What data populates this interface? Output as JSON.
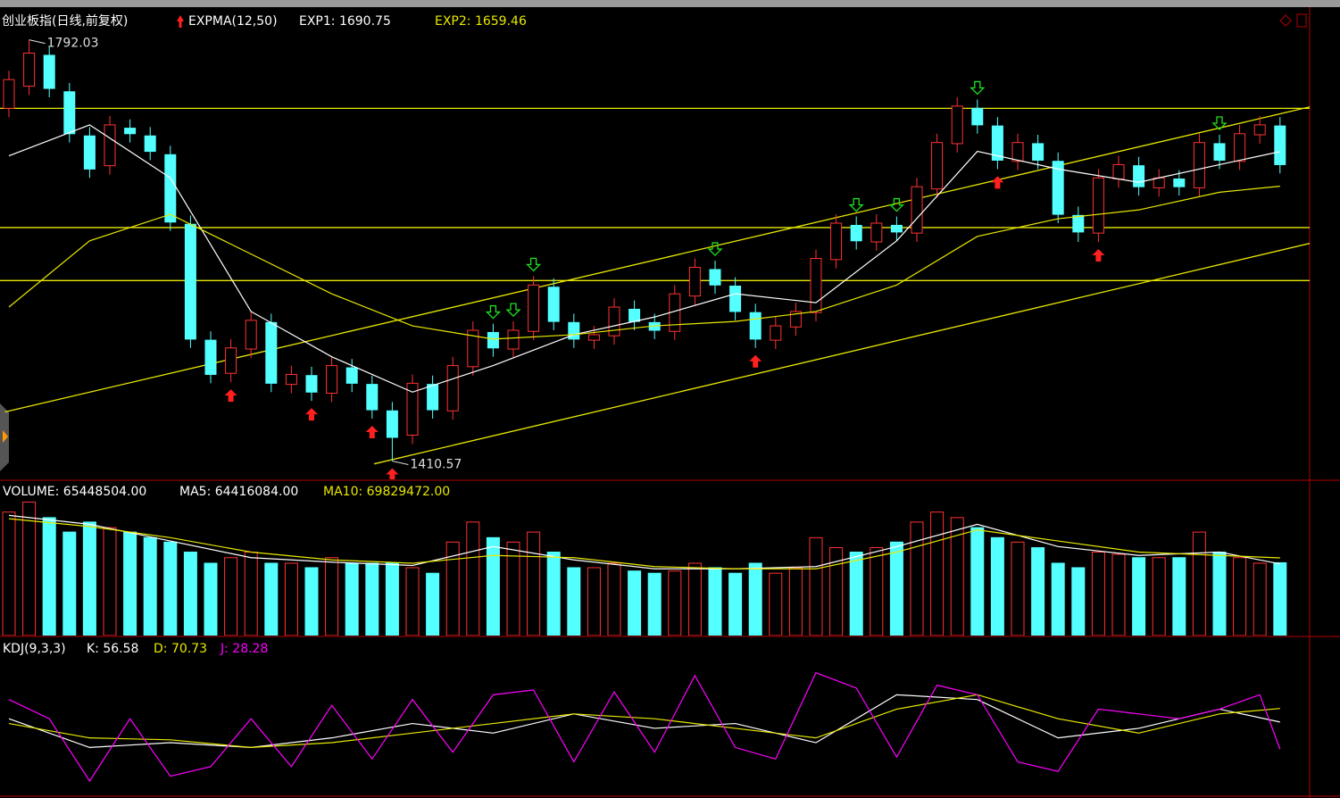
{
  "chart_data": [
    {
      "type": "candlestick",
      "title": "创业板指(日线,前复权)",
      "indicator": "EXPMA(12,50)",
      "categories": [
        null,
        null,
        null,
        null,
        null,
        null,
        null,
        null,
        null,
        null,
        null,
        null,
        null,
        null,
        null,
        null,
        null,
        null,
        null,
        null,
        null,
        null,
        null,
        null,
        null,
        null,
        null,
        null,
        null,
        null,
        null,
        null,
        null,
        null,
        null,
        null,
        null,
        null,
        null,
        null,
        null,
        null,
        null,
        null,
        null,
        null,
        null,
        null,
        null,
        null,
        null,
        null,
        null,
        null,
        null,
        null,
        null,
        null,
        null,
        null,
        null,
        null,
        null,
        null
      ],
      "open": [
        1730,
        1750,
        1778,
        1745,
        1705,
        1678,
        1712,
        1705,
        1688,
        1625,
        1520,
        1490,
        1512,
        1536,
        1480,
        1488,
        1472,
        1495,
        1480,
        1456,
        1434,
        1480,
        1456,
        1496,
        1527,
        1512,
        1528,
        1568,
        1536,
        1520,
        1524,
        1548,
        1536,
        1528,
        1560,
        1584,
        1569,
        1545,
        1520,
        1532,
        1545,
        1593,
        1624,
        1609,
        1624,
        1617,
        1657,
        1698,
        1730,
        1714,
        1682,
        1698,
        1682,
        1633,
        1617,
        1666,
        1678,
        1658,
        1666,
        1658,
        1698,
        1682,
        1706,
        1714
      ],
      "high": [
        1764,
        1792.03,
        1786,
        1753,
        1713,
        1723,
        1720,
        1713,
        1696,
        1633,
        1528,
        1521,
        1546,
        1544,
        1497,
        1496,
        1505,
        1503,
        1488,
        1464,
        1489,
        1488,
        1505,
        1537,
        1535,
        1537,
        1578,
        1576,
        1544,
        1533,
        1558,
        1556,
        1544,
        1570,
        1594,
        1592,
        1577,
        1553,
        1541,
        1554,
        1602,
        1634,
        1632,
        1634,
        1632,
        1667,
        1707,
        1740,
        1738,
        1722,
        1707,
        1706,
        1690,
        1641,
        1675,
        1687,
        1686,
        1675,
        1674,
        1707,
        1706,
        1715,
        1723,
        1722
      ],
      "low": [
        1722,
        1742,
        1740,
        1699,
        1667,
        1670,
        1699,
        1683,
        1619,
        1513,
        1481,
        1482,
        1504,
        1473,
        1472,
        1465,
        1464,
        1473,
        1449,
        1410.57,
        1426,
        1449,
        1448,
        1488,
        1505,
        1504,
        1520,
        1529,
        1513,
        1512,
        1516,
        1529,
        1521,
        1520,
        1552,
        1562,
        1538,
        1513,
        1512,
        1524,
        1537,
        1585,
        1602,
        1601,
        1610,
        1609,
        1649,
        1690,
        1707,
        1675,
        1674,
        1675,
        1626,
        1609,
        1609,
        1658,
        1651,
        1650,
        1651,
        1650,
        1675,
        1674,
        1698,
        1671
      ],
      "close": [
        1756,
        1780,
        1748,
        1707,
        1675,
        1715,
        1707,
        1691,
        1627,
        1521,
        1489,
        1513,
        1538,
        1481,
        1489,
        1473,
        1497,
        1481,
        1457,
        1432,
        1481,
        1457,
        1497,
        1529,
        1513,
        1529,
        1570,
        1537,
        1521,
        1525,
        1550,
        1537,
        1529,
        1562,
        1586,
        1570,
        1546,
        1521,
        1533,
        1546,
        1594,
        1626,
        1610,
        1626,
        1618,
        1659,
        1699,
        1732,
        1715,
        1683,
        1699,
        1683,
        1634,
        1618,
        1667,
        1679,
        1659,
        1667,
        1659,
        1699,
        1683,
        1707,
        1715,
        1679
      ],
      "up_color": "#ff3232",
      "down_color": "#54ffff",
      "ylim": [
        1394,
        1820
      ],
      "series": [
        {
          "name": "EXP1: 1690.75",
          "color": "#ffffff",
          "x": [
            0,
            4,
            8,
            12,
            16,
            20,
            24,
            28,
            32,
            36,
            40,
            44,
            48,
            52,
            56,
            60,
            63
          ],
          "values": [
            1687,
            1715,
            1667,
            1546,
            1505,
            1473,
            1497,
            1525,
            1541,
            1562,
            1554,
            1610,
            1691,
            1675,
            1663,
            1679,
            1690.75
          ]
        },
        {
          "name": "EXP2: 1659.46",
          "color": "#e8e800",
          "x": [
            0,
            4,
            8,
            12,
            16,
            20,
            24,
            28,
            32,
            36,
            40,
            44,
            48,
            52,
            56,
            60,
            63
          ],
          "values": [
            1550,
            1610,
            1634,
            1598,
            1562,
            1533,
            1521,
            1525,
            1533,
            1537,
            1546,
            1570,
            1614,
            1630,
            1638,
            1654,
            1659.46
          ]
        }
      ],
      "hlines": [
        1730,
        1622,
        1574
      ],
      "trendlines": [
        {
          "x": [
            -0.2,
            64.5
          ],
          "values": [
            1455,
            1731.4
          ]
        },
        {
          "x": [
            18.1,
            64.5
          ],
          "values": [
            1408,
            1607.8
          ]
        }
      ],
      "line_color": "#e8e800",
      "buy_signals": [
        11,
        15,
        18,
        19,
        37,
        49,
        54
      ],
      "sell_signals": [
        24,
        25,
        26,
        35,
        42,
        44,
        48,
        60
      ]
    },
    {
      "type": "bar",
      "title": "VOLUME: 65448504.00",
      "values": [
        111000000,
        120000000,
        106000000,
        93000000,
        102000000,
        97000000,
        93000000,
        88000000,
        84000000,
        75000000,
        65000000,
        70000000,
        75000000,
        65000000,
        65000000,
        61000000,
        70000000,
        65000000,
        65000000,
        65000000,
        61000000,
        56000000,
        84000000,
        102000000,
        88000000,
        84000000,
        93000000,
        75000000,
        61000000,
        61000000,
        65000000,
        58000000,
        56000000,
        58000000,
        65000000,
        61000000,
        56000000,
        65000000,
        56000000,
        61000000,
        88000000,
        79000000,
        75000000,
        79000000,
        84000000,
        102000000,
        111000000,
        106000000,
        97000000,
        88000000,
        84000000,
        79000000,
        65000000,
        61000000,
        75000000,
        73000000,
        70000000,
        70000000,
        70000000,
        93000000,
        75000000,
        70000000,
        65000000,
        65448504
      ],
      "ylim": [
        0,
        138000000
      ],
      "series": [
        {
          "name": "MA5: 64416084.00",
          "color": "#ffffff",
          "x": [
            0,
            4,
            8,
            12,
            16,
            20,
            24,
            28,
            32,
            36,
            40,
            44,
            48,
            52,
            56,
            60,
            63
          ],
          "values": [
            108000000,
            100000000,
            85000000,
            70000000,
            66000000,
            63000000,
            80000000,
            68000000,
            60000000,
            60000000,
            62000000,
            80000000,
            100000000,
            80000000,
            72000000,
            75000000,
            64416084
          ]
        },
        {
          "name": "MA10: 69829472.00",
          "color": "#e8e800",
          "x": [
            0,
            4,
            8,
            12,
            16,
            20,
            24,
            28,
            32,
            36,
            40,
            44,
            48,
            52,
            56,
            60,
            63
          ],
          "values": [
            105000000,
            98000000,
            88000000,
            75000000,
            68000000,
            65000000,
            72000000,
            70000000,
            62000000,
            60000000,
            60000000,
            75000000,
            95000000,
            85000000,
            75000000,
            72000000,
            69829472
          ]
        }
      ]
    },
    {
      "type": "line",
      "title": "KDJ(9,3,3)",
      "ylim": [
        -19,
        144
      ],
      "series": [
        {
          "name": "K: 56.58",
          "color": "#ffffff",
          "x": [
            0,
            4,
            8,
            12,
            16,
            20,
            24,
            28,
            32,
            36,
            40,
            44,
            48,
            52,
            56,
            60,
            63
          ],
          "values": [
            60,
            30,
            35,
            30,
            40,
            55,
            45,
            65,
            50,
            55,
            35,
            85,
            80,
            40,
            50,
            70,
            56.58
          ]
        },
        {
          "name": "D: 70.73",
          "color": "#e8e800",
          "x": [
            0,
            4,
            8,
            12,
            16,
            20,
            24,
            28,
            32,
            36,
            40,
            44,
            48,
            52,
            56,
            60,
            63
          ],
          "values": [
            55,
            40,
            38,
            30,
            35,
            45,
            55,
            65,
            60,
            50,
            40,
            70,
            85,
            60,
            45,
            65,
            70.73
          ]
        },
        {
          "name": "J: 28.28",
          "color": "#ff00ff",
          "x": [
            0,
            2,
            4,
            6,
            8,
            10,
            12,
            14,
            16,
            18,
            20,
            22,
            24,
            26,
            28,
            30,
            32,
            34,
            36,
            38,
            40,
            42,
            44,
            46,
            48,
            50,
            52,
            54,
            56,
            58,
            60,
            62,
            63
          ],
          "values": [
            80,
            60,
            -5,
            60,
            0,
            10,
            60,
            10,
            74,
            18,
            80,
            25,
            85,
            90,
            15,
            88,
            25,
            105,
            30,
            18,
            108,
            92,
            20,
            95,
            85,
            15,
            5,
            70,
            65,
            60,
            70,
            85,
            28.28
          ]
        }
      ]
    }
  ]
}
